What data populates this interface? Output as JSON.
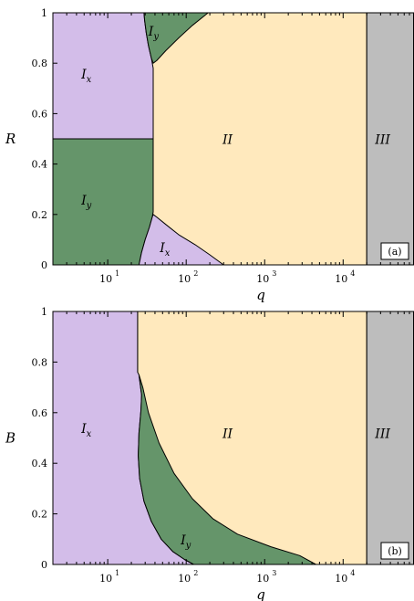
{
  "colors": {
    "region_Ix": "#d3bde9",
    "region_Iy": "#65956a",
    "region_II": "#ffe9bd",
    "region_III": "#bdbdbd",
    "boundary": "#000000"
  },
  "chart_data": [
    {
      "type": "area",
      "panel_label": "(a)",
      "xlabel": "q",
      "ylabel": "R",
      "xscale": "log",
      "xlim": [
        2,
        80000
      ],
      "ylim": [
        0,
        1
      ],
      "xticks": [
        {
          "value": 10,
          "label": "10"
        },
        {
          "value": 100,
          "label": "10"
        },
        {
          "value": 1000,
          "label": "10"
        },
        {
          "value": 10000,
          "label": "10"
        }
      ],
      "xtick_exponents": [
        "1",
        "2",
        "3",
        "4"
      ],
      "yticks": [
        {
          "value": 0,
          "label": "0"
        },
        {
          "value": 0.2,
          "label": "0.2"
        },
        {
          "value": 0.4,
          "label": "0.4"
        },
        {
          "value": 0.6,
          "label": "0.6"
        },
        {
          "value": 0.8,
          "label": "0.8"
        },
        {
          "value": 1,
          "label": "1"
        }
      ],
      "grid": false,
      "regions": [
        {
          "id": "II",
          "label": "II",
          "subscript": "",
          "color_key": "region_II",
          "polygon": [
            [
              2,
              0
            ],
            [
              20000,
              0
            ],
            [
              20000,
              1
            ],
            [
              2,
              1
            ]
          ],
          "label_pos": [
            290,
            0.48
          ]
        },
        {
          "id": "Ix-top",
          "label": "I",
          "subscript": "x",
          "color_key": "region_Ix",
          "polygon": [
            [
              2,
              0.5
            ],
            [
              38,
              0.5
            ],
            [
              38,
              0.78
            ],
            [
              36,
              0.82
            ],
            [
              33,
              0.87
            ],
            [
              31,
              0.92
            ],
            [
              29.5,
              0.97
            ],
            [
              29,
              1
            ],
            [
              2,
              1
            ]
          ],
          "label_pos": [
            4.6,
            0.74
          ]
        },
        {
          "id": "Iy-left",
          "label": "I",
          "subscript": "y",
          "color_key": "region_Iy",
          "polygon": [
            [
              2,
              0
            ],
            [
              25,
              0
            ],
            [
              27,
              0.05
            ],
            [
              30,
              0.1
            ],
            [
              34,
              0.15
            ],
            [
              37,
              0.19
            ],
            [
              38,
              0.21
            ],
            [
              38,
              0.5
            ],
            [
              2,
              0.5
            ]
          ],
          "label_pos": [
            4.6,
            0.24
          ]
        },
        {
          "id": "Iy-top",
          "label": "I",
          "subscript": "y",
          "color_key": "region_Iy",
          "polygon": [
            [
              29,
              1
            ],
            [
              29.5,
              0.97
            ],
            [
              31,
              0.92
            ],
            [
              33,
              0.87
            ],
            [
              36,
              0.82
            ],
            [
              38,
              0.8
            ],
            [
              42,
              0.81
            ],
            [
              55,
              0.85
            ],
            [
              80,
              0.9
            ],
            [
              120,
              0.95
            ],
            [
              190,
              1
            ]
          ],
          "label_pos": [
            33,
            0.91
          ]
        },
        {
          "id": "Ix-bottom",
          "label": "I",
          "subscript": "x",
          "color_key": "region_Ix",
          "polygon": [
            [
              25,
              0
            ],
            [
              27,
              0.05
            ],
            [
              30,
              0.1
            ],
            [
              34,
              0.15
            ],
            [
              37,
              0.19
            ],
            [
              38,
              0.2
            ],
            [
              42,
              0.19
            ],
            [
              55,
              0.16
            ],
            [
              80,
              0.12
            ],
            [
              130,
              0.08
            ],
            [
              200,
              0.04
            ],
            [
              300,
              0
            ]
          ],
          "label_pos": [
            46,
            0.05
          ]
        },
        {
          "id": "III",
          "label": "III",
          "subscript": "",
          "color_key": "region_III",
          "polygon": [
            [
              20000,
              0
            ],
            [
              80000,
              0
            ],
            [
              80000,
              1
            ],
            [
              20000,
              1
            ]
          ],
          "label_pos": [
            25500,
            0.48
          ]
        }
      ]
    },
    {
      "type": "area",
      "panel_label": "(b)",
      "xlabel": "q",
      "ylabel": "B",
      "xscale": "log",
      "xlim": [
        2,
        80000
      ],
      "ylim": [
        0,
        1
      ],
      "xticks": [
        {
          "value": 10,
          "label": "10"
        },
        {
          "value": 100,
          "label": "10"
        },
        {
          "value": 1000,
          "label": "10"
        },
        {
          "value": 10000,
          "label": "10"
        }
      ],
      "xtick_exponents": [
        "1",
        "2",
        "3",
        "4"
      ],
      "yticks": [
        {
          "value": 0,
          "label": "0"
        },
        {
          "value": 0.2,
          "label": "0.2"
        },
        {
          "value": 0.4,
          "label": "0.4"
        },
        {
          "value": 0.6,
          "label": "0.6"
        },
        {
          "value": 0.8,
          "label": "0.8"
        },
        {
          "value": 1,
          "label": "1"
        }
      ],
      "grid": false,
      "regions": [
        {
          "id": "II",
          "label": "II",
          "subscript": "",
          "color_key": "region_II",
          "polygon": [
            [
              24,
              0
            ],
            [
              20000,
              0
            ],
            [
              20000,
              1
            ],
            [
              24,
              1
            ]
          ],
          "label_pos": [
            290,
            0.5
          ]
        },
        {
          "id": "Ix",
          "label": "I",
          "subscript": "x",
          "color_key": "region_Ix",
          "polygon": [
            [
              2,
              0
            ],
            [
              125,
              0
            ],
            [
              95,
              0.02
            ],
            [
              68,
              0.05
            ],
            [
              48,
              0.1
            ],
            [
              36,
              0.17
            ],
            [
              29,
              0.25
            ],
            [
              25.5,
              0.34
            ],
            [
              24.5,
              0.43
            ],
            [
              25,
              0.52
            ],
            [
              26.5,
              0.61
            ],
            [
              27,
              0.67
            ],
            [
              25,
              0.75
            ],
            [
              24,
              0.76
            ],
            [
              24,
              1
            ],
            [
              2,
              1
            ]
          ],
          "label_pos": [
            4.6,
            0.52
          ]
        },
        {
          "id": "Iy",
          "label": "I",
          "subscript": "y",
          "color_key": "region_Iy",
          "polygon": [
            [
              125,
              0
            ],
            [
              95,
              0.02
            ],
            [
              68,
              0.05
            ],
            [
              48,
              0.1
            ],
            [
              36,
              0.17
            ],
            [
              29,
              0.25
            ],
            [
              25.5,
              0.34
            ],
            [
              24.5,
              0.43
            ],
            [
              25,
              0.52
            ],
            [
              26.5,
              0.61
            ],
            [
              27,
              0.67
            ],
            [
              25,
              0.75
            ],
            [
              28,
              0.7
            ],
            [
              33,
              0.6
            ],
            [
              45,
              0.48
            ],
            [
              70,
              0.36
            ],
            [
              120,
              0.26
            ],
            [
              220,
              0.18
            ],
            [
              450,
              0.12
            ],
            [
              1200,
              0.07
            ],
            [
              2800,
              0.035
            ],
            [
              4500,
              0
            ]
          ],
          "label_pos": [
            85,
            0.08
          ]
        },
        {
          "id": "III",
          "label": "III",
          "subscript": "",
          "color_key": "region_III",
          "polygon": [
            [
              20000,
              0
            ],
            [
              80000,
              0
            ],
            [
              80000,
              1
            ],
            [
              20000,
              1
            ]
          ],
          "label_pos": [
            25500,
            0.5
          ]
        }
      ]
    }
  ]
}
